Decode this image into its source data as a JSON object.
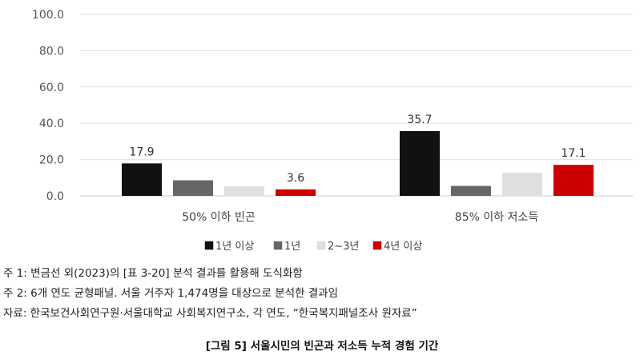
{
  "chart_data": {
    "type": "bar",
    "categories": [
      "50% 이하 빈곤",
      "85% 이하 저소득"
    ],
    "series": [
      {
        "name": "1년 이상",
        "color": "#111111",
        "values": [
          17.9,
          35.7
        ]
      },
      {
        "name": "1년",
        "color": "#666666",
        "values": [
          8.6,
          5.5
        ]
      },
      {
        "name": "2~3년",
        "color": "#e0e0e0",
        "values": [
          5.3,
          12.7
        ]
      },
      {
        "name": "4년 이상",
        "color": "#cc0000",
        "values": [
          3.6,
          17.1
        ]
      }
    ],
    "data_labels": {
      "1년 이상": [
        "17.9",
        "35.7"
      ],
      "4년 이상": [
        "3.6",
        "17.1"
      ]
    },
    "yticks": [
      "0.0",
      "20.0",
      "40.0",
      "60.0",
      "80.0",
      "100.0"
    ],
    "ylim": [
      0,
      100
    ],
    "grid": true,
    "legend_position": "bottom",
    "legend_marker": "■"
  },
  "notes": [
    "주 1: 변금선 외(2023)의 [표 3-20] 분석 결과를 활용해 도식화함",
    "주 2: 6개 연도 균형패널. 서울 거주자 1,474명을 대상으로 분석한 결과임",
    "자료: 한국보건사회연구원·서울대학교 사회복지연구소, 각 연도, “한국복지패널조사 원자료”"
  ],
  "caption": "[그림 5] 서울시민의 빈곤과 저소득 누적 경험 기간"
}
